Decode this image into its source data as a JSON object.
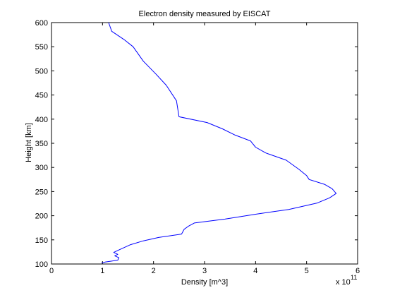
{
  "chart_data": {
    "type": "line",
    "title": "Electron density measured by EISCAT",
    "xlabel": "Density [m^3]",
    "ylabel": "Height [km]",
    "x_exponent_label": "x 10",
    "x_exponent_power": "11",
    "x_scale": 100000000000,
    "xlim": [
      0,
      6
    ],
    "ylim": [
      100,
      600
    ],
    "xticks": [
      "0",
      "1",
      "2",
      "3",
      "4",
      "5",
      "6"
    ],
    "yticks": [
      "100",
      "150",
      "200",
      "250",
      "300",
      "350",
      "400",
      "450",
      "500",
      "550",
      "600"
    ],
    "grid": false,
    "line_color": "#0000ff",
    "series": [
      {
        "x": [
          0.98,
          1.05,
          1.18,
          1.3,
          1.32,
          1.24,
          1.3,
          1.22,
          1.3,
          1.55,
          1.8,
          2.1,
          2.55,
          2.6,
          2.68,
          2.8,
          3.4,
          4.0,
          4.65,
          5.2,
          5.45,
          5.58,
          5.5,
          5.35,
          5.05,
          5.0,
          4.85,
          4.6,
          4.2,
          4.0,
          3.9,
          3.6,
          3.35,
          3.05,
          2.5,
          2.45,
          2.25,
          2.05,
          1.8,
          1.6,
          1.42,
          1.18,
          1.12
        ],
        "y": [
          102,
          104,
          106,
          108,
          113,
          117,
          120,
          124,
          128,
          140,
          148,
          155,
          162,
          172,
          178,
          185,
          193,
          203,
          213,
          226,
          237,
          246,
          256,
          265,
          275,
          283,
          296,
          315,
          330,
          342,
          355,
          367,
          380,
          393,
          405,
          438,
          470,
          493,
          520,
          550,
          565,
          582,
          600
        ]
      }
    ]
  }
}
